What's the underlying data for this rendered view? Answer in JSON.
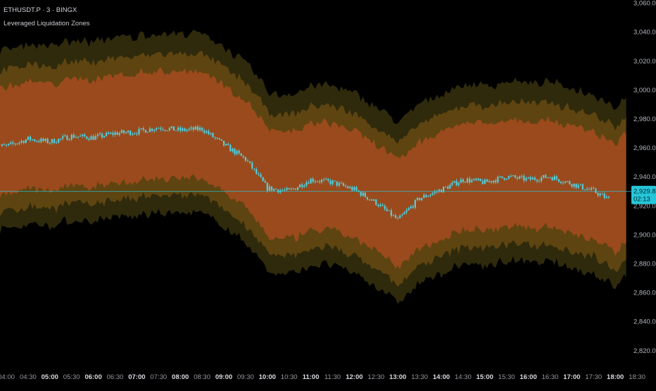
{
  "header": {
    "symbol": "ETHUSDT.P · 3 · BINGX",
    "indicator": "Leveraged Liquidation Zones"
  },
  "colors": {
    "background": "#000000",
    "axis_text": "#b2b5be",
    "candle": "#4dd0e1",
    "price_line": "#26c6da",
    "price_label_bg": "#26c6da",
    "price_label_text": "#002a30",
    "inner_zone": "#9a4a1c",
    "middle_zone": "#5e4410",
    "outer_zone": "#2f2a0c"
  },
  "price_label": {
    "price": "2,929.80",
    "countdown": "02:13"
  },
  "chart_data": {
    "type": "candlestick",
    "title": "ETHUSDT.P · 3 · BINGX",
    "subtitle": "Leveraged Liquidation Zones",
    "xlabel": "",
    "ylabel": "",
    "ylim": [
      2808,
      3062
    ],
    "y_ticks": [
      2820,
      2840,
      2860,
      2880,
      2900,
      2920,
      2940,
      2960,
      2980,
      3000,
      3020,
      3040,
      3060
    ],
    "y_tick_labels": [
      "2,820.00",
      "2,840.00",
      "2,860.00",
      "2,880.00",
      "2,900.00",
      "2,920.00",
      "2,940.00",
      "2,960.00",
      "2,980.00",
      "3,000.00",
      "3,020.00",
      "3,040.00",
      "3,060.00"
    ],
    "x_ticks": [
      "04:00",
      "04:30",
      "05:00",
      "05:30",
      "06:00",
      "06:30",
      "07:00",
      "07:30",
      "08:00",
      "08:30",
      "09:00",
      "09:30",
      "10:00",
      "10:30",
      "11:00",
      "11:30",
      "12:00",
      "12:30",
      "13:00",
      "13:30",
      "14:00",
      "14:30",
      "15:00",
      "15:30",
      "16:00",
      "16:30",
      "17:00",
      "17:30",
      "18:00",
      "18:30"
    ],
    "x_ticks_bold": [
      "05:00",
      "06:00",
      "07:00",
      "08:00",
      "09:00",
      "10:00",
      "11:00",
      "12:00",
      "13:00",
      "14:00",
      "15:00",
      "16:00",
      "17:00",
      "18:00"
    ],
    "price_anchors": {
      "time": [
        "04:00",
        "04:30",
        "05:00",
        "05:30",
        "06:00",
        "06:30",
        "07:00",
        "07:30",
        "08:00",
        "08:30",
        "09:00",
        "09:30",
        "10:00",
        "10:30",
        "11:00",
        "11:30",
        "12:00",
        "12:30",
        "13:00",
        "13:30",
        "14:00",
        "14:30",
        "15:00",
        "15:30",
        "16:00",
        "16:30",
        "17:00",
        "17:30",
        "18:00",
        "18:15"
      ],
      "price": [
        2961,
        2966,
        2964,
        2968,
        2967,
        2970,
        2971,
        2974,
        2972,
        2973,
        2962,
        2952,
        2932,
        2930,
        2938,
        2936,
        2931,
        2922,
        2910,
        2925,
        2931,
        2938,
        2936,
        2940,
        2938,
        2940,
        2935,
        2930,
        2922,
        2930
      ]
    },
    "zones": [
      {
        "name": "inner",
        "offset_upper": 40,
        "offset_lower": 34
      },
      {
        "name": "middle",
        "offset_upper": 52,
        "offset_lower": 46
      },
      {
        "name": "outer",
        "offset_upper": 66,
        "offset_lower": 58
      }
    ],
    "last_price": 2929.8,
    "grid": false,
    "legend": "none"
  }
}
